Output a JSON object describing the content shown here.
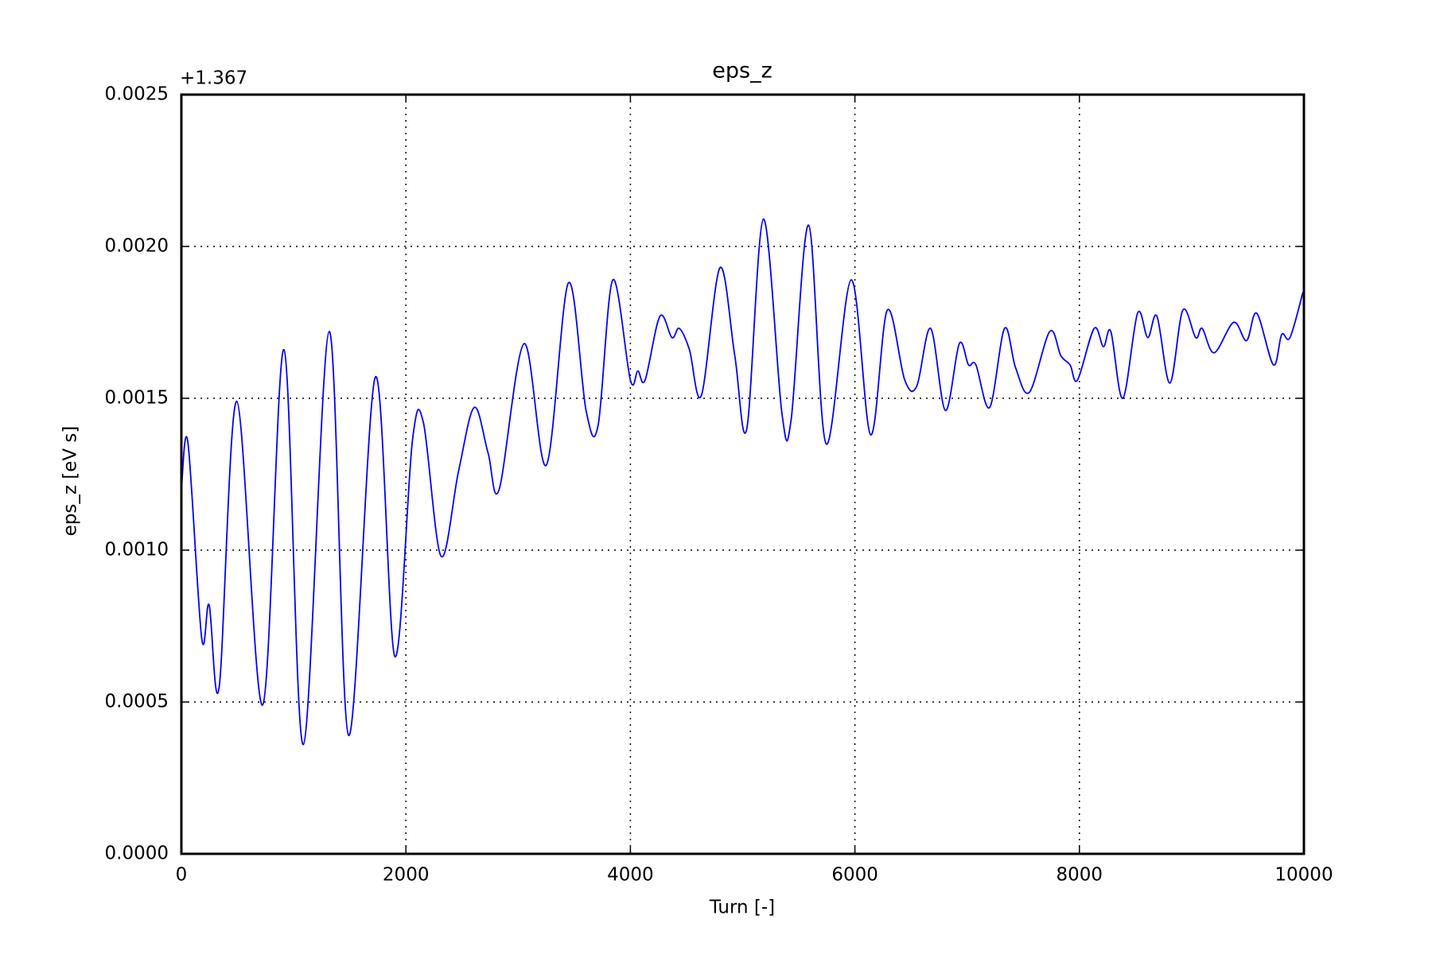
{
  "chart_data": {
    "type": "line",
    "title": "eps_z",
    "x_label": "Turn [-]",
    "y_label": "eps_z [eV s]",
    "y_offset_label": "+1.367",
    "xlim": [
      0,
      10000
    ],
    "xticks": [
      0,
      2000,
      4000,
      6000,
      8000,
      10000
    ],
    "ylim": [
      0,
      0.0025
    ],
    "yticks": [
      {
        "value": 0,
        "label": "0.0000"
      },
      {
        "value": 0.0005,
        "label": "0.0005"
      },
      {
        "value": 0.001,
        "label": "0.0010"
      },
      {
        "value": 0.0015,
        "label": "0.0015"
      },
      {
        "value": 0.002,
        "label": "0.0020"
      },
      {
        "value": 0.0025,
        "label": "0.0025"
      }
    ],
    "grid": true,
    "series": [
      {
        "color": "#0000ff",
        "x": [
          0,
          58,
          181,
          247,
          337,
          494,
          724,
          914,
          1086,
          1317,
          1490,
          1728,
          1901,
          2058,
          2156,
          2313,
          2469,
          2609,
          2732,
          2831,
          3053,
          3251,
          3448,
          3605,
          3712,
          3843,
          4000,
          4066,
          4131,
          4263,
          4370,
          4436,
          4526,
          4633,
          4798,
          4930,
          5037,
          5185,
          5350,
          5432,
          5588,
          5744,
          5967,
          6140,
          6288,
          6444,
          6551,
          6675,
          6806,
          6930,
          7012,
          7078,
          7201,
          7333,
          7432,
          7555,
          7736,
          7835,
          7917,
          7983,
          8131,
          8214,
          8280,
          8387,
          8518,
          8609,
          8691,
          8806,
          8921,
          9036,
          9094,
          9201,
          9374,
          9489,
          9580,
          9728,
          9802,
          9876,
          9992
        ],
        "values": [
          0.0012,
          0.001355,
          0.00071,
          0.00082,
          0.00055,
          0.00149,
          0.00049,
          0.00166,
          0.00036,
          0.00172,
          0.00039,
          0.00157,
          0.00065,
          0.00136,
          0.00142,
          0.00098,
          0.00126,
          0.00147,
          0.00132,
          0.0012,
          0.00168,
          0.00128,
          0.00188,
          0.00146,
          0.00141,
          0.00189,
          0.00156,
          0.00159,
          0.00156,
          0.00177,
          0.0017,
          0.00173,
          0.00166,
          0.00151,
          0.00193,
          0.00164,
          0.0014,
          0.00209,
          0.00145,
          0.00143,
          0.00207,
          0.00135,
          0.00189,
          0.00138,
          0.00179,
          0.00156,
          0.00154,
          0.00173,
          0.00146,
          0.00168,
          0.00161,
          0.00161,
          0.00147,
          0.00173,
          0.0016,
          0.00152,
          0.00172,
          0.00164,
          0.00161,
          0.00156,
          0.00173,
          0.00167,
          0.00172,
          0.0015,
          0.00178,
          0.0017,
          0.00177,
          0.00155,
          0.00179,
          0.0017,
          0.00173,
          0.00165,
          0.00175,
          0.00169,
          0.00178,
          0.00161,
          0.00171,
          0.0017,
          0.00185
        ]
      }
    ]
  }
}
